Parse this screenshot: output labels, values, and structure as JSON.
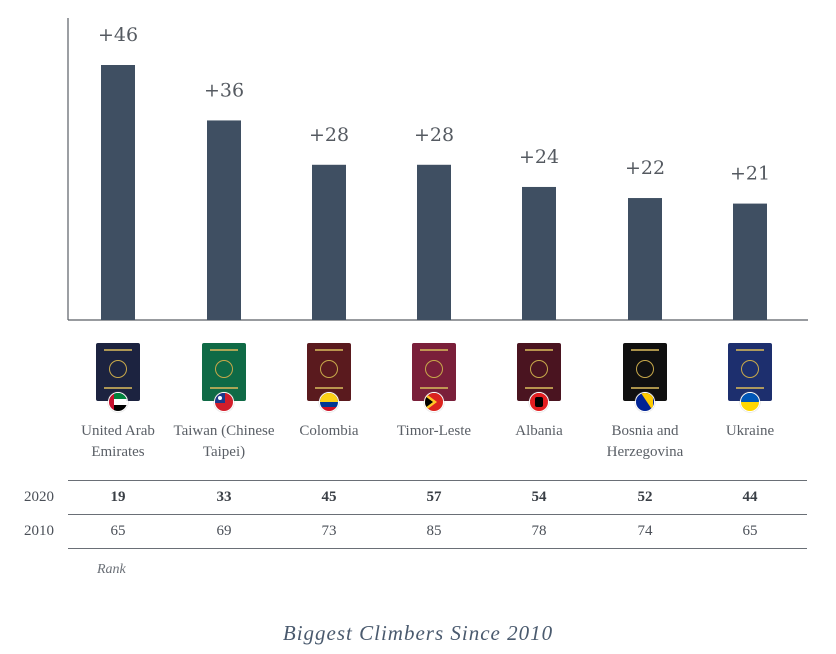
{
  "chart_data": {
    "type": "bar",
    "title": "Biggest Climbers Since 2010",
    "categories": [
      "United Arab Emirates",
      "Taiwan (Chinese Taipei)",
      "Colombia",
      "Timor-Leste",
      "Albania",
      "Bosnia and Herzegovina",
      "Ukraine"
    ],
    "category_lines": [
      [
        "United Arab",
        "Emirates"
      ],
      [
        "Taiwan (Chinese",
        "Taipei)"
      ],
      [
        "Colombia"
      ],
      [
        "Timor-Leste"
      ],
      [
        "Albania"
      ],
      [
        "Bosnia and",
        "Herzegovina"
      ],
      [
        "Ukraine"
      ]
    ],
    "values": [
      46,
      36,
      28,
      28,
      24,
      22,
      21
    ],
    "value_labels": [
      "+46",
      "+36",
      "+28",
      "+28",
      "+24",
      "+22",
      "+21"
    ],
    "ylim": [
      0,
      46
    ],
    "xlabel": "",
    "ylabel": "",
    "grid": false,
    "bar_color": "#3f4f62"
  },
  "table": {
    "rows": [
      {
        "label": "2020",
        "values": [
          "19",
          "33",
          "45",
          "57",
          "54",
          "52",
          "44"
        ]
      },
      {
        "label": "2010",
        "values": [
          "65",
          "69",
          "73",
          "85",
          "78",
          "74",
          "65"
        ]
      }
    ],
    "footnote": "Rank"
  },
  "passports": [
    {
      "country": "United Arab Emirates",
      "color": "#1c2340",
      "flag": "uae"
    },
    {
      "country": "Taiwan (Chinese Taipei)",
      "color": "#0f6a46",
      "flag": "taiwan"
    },
    {
      "country": "Colombia",
      "color": "#5a1a1e",
      "flag": "colombia"
    },
    {
      "country": "Timor-Leste",
      "color": "#7a1f3a",
      "flag": "timor"
    },
    {
      "country": "Albania",
      "color": "#4a1420",
      "flag": "albania"
    },
    {
      "country": "Bosnia and Herzegovina",
      "color": "#101010",
      "flag": "bosnia"
    },
    {
      "country": "Ukraine",
      "color": "#1d2f6e",
      "flag": "ukraine"
    }
  ],
  "caption": "Biggest Climbers Since 2010"
}
